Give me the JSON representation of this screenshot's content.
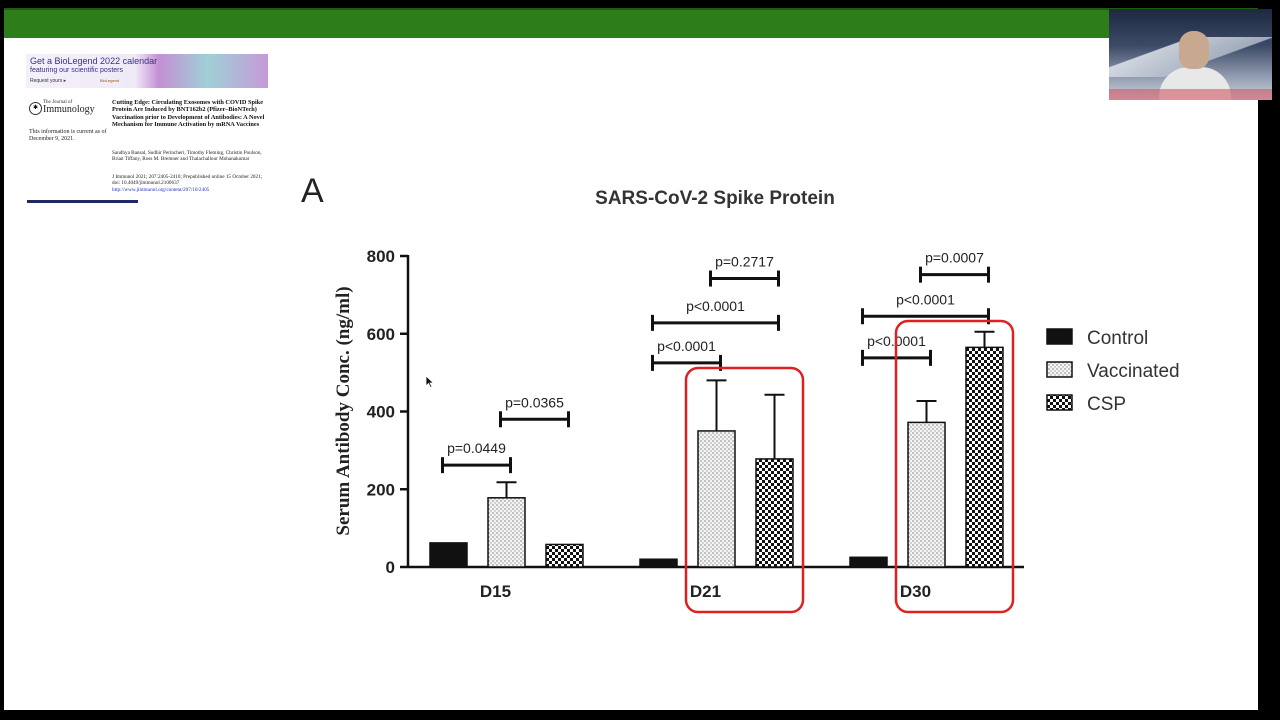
{
  "paper": {
    "banner_title": "Get a BioLegend 2022 calendar",
    "banner_subtitle": "featuring our scientific posters",
    "banner_request": "Request yours ▸",
    "banner_logo": "BioLegend",
    "journal_the": "The Journal of",
    "journal_name": "Immunology",
    "current_note": "This information is current as of December 9, 2021.",
    "title": "Cutting Edge: Circulating Exosomes with COVID Spike Protein Are Induced by BNT162b2 (Pfizer–BioNTech) Vaccination prior to Development of Antibodies: A Novel Mechanism for Immune Activation by mRNA Vaccines",
    "authors": "Sandhya Bansal, Sudhir Perincheri, Timothy Fleming, Christin Poulson, Brian Tiffany, Ross M. Bremner and Thalachallour Mohanakumar",
    "citation": "J Immunol 2021; 207:2405-2410; Prepublished online 15 October 2021;",
    "doi": "doi: 10.4049/jimmunol.2100637",
    "url": "http://www.jimmunol.org/content/207/10/2405"
  },
  "panel_letter": "A",
  "chart_data": {
    "type": "bar",
    "title": "SARS-CoV-2 Spike Protein",
    "ylabel": "Serum Antibody Conc. (ng/ml)",
    "xlabel": "",
    "ylim": [
      0,
      800
    ],
    "yticks": [
      0,
      200,
      400,
      600,
      800
    ],
    "categories": [
      "D15",
      "D21",
      "D30"
    ],
    "series": [
      {
        "name": "Control",
        "pattern": "solid",
        "values": [
          62,
          20,
          25
        ],
        "errors": [
          0,
          0,
          0
        ]
      },
      {
        "name": "Vaccinated",
        "pattern": "dots",
        "values": [
          178,
          350,
          372
        ],
        "errors": [
          40,
          130,
          55
        ]
      },
      {
        "name": "CSP",
        "pattern": "checker",
        "values": [
          58,
          278,
          565
        ],
        "errors": [
          0,
          165,
          40
        ]
      }
    ],
    "significance": [
      {
        "group": 0,
        "from": 0,
        "to": 1,
        "level": 262,
        "label": "p=0.0449"
      },
      {
        "group": 0,
        "from": 1,
        "to": 2,
        "level": 380,
        "label": "p=0.0365"
      },
      {
        "group": 1,
        "from": 0,
        "to": 1,
        "level": 525,
        "label": "p<0.0001"
      },
      {
        "group": 1,
        "from": 0,
        "to": 2,
        "level": 628,
        "label": "p<0.0001"
      },
      {
        "group": 1,
        "from": 1,
        "to": 2,
        "level": 742,
        "label": "p=0.2717"
      },
      {
        "group": 2,
        "from": 0,
        "to": 1,
        "level": 538,
        "label": "p<0.0001"
      },
      {
        "group": 2,
        "from": 0,
        "to": 2,
        "level": 645,
        "label": "p<0.0001"
      },
      {
        "group": 2,
        "from": 1,
        "to": 2,
        "level": 752,
        "label": "p=0.0007"
      }
    ],
    "highlighted_categories": [
      "D21",
      "D30"
    ],
    "highlight_color": "#e02020",
    "legend_position": "right"
  }
}
